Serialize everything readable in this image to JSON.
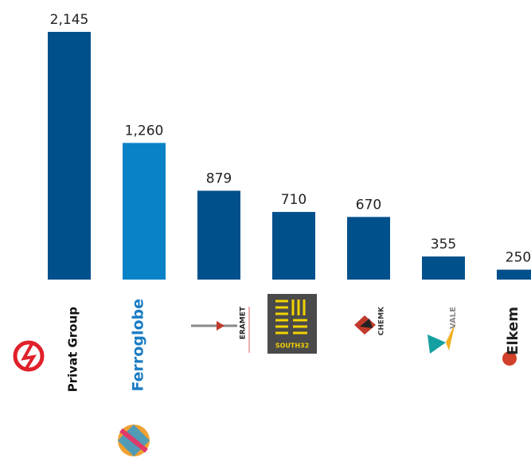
{
  "chart_data": {
    "type": "bar",
    "categories": [
      "Privat Group",
      "Ferroglobe",
      "ERAMET",
      "SOUTH32",
      "CHEMK",
      "VALE",
      "Elkem"
    ],
    "values": [
      2145,
      1260,
      879,
      710,
      670,
      355,
      250
    ],
    "value_labels": [
      "2,145",
      "1,260",
      "879",
      "710",
      "670",
      "355",
      "250"
    ],
    "colors": [
      "#00508c",
      "#0a82c8",
      "#00508c",
      "#00508c",
      "#00508c",
      "#00508c",
      "#00508c"
    ],
    "ylim": [
      171,
      2145
    ]
  }
}
